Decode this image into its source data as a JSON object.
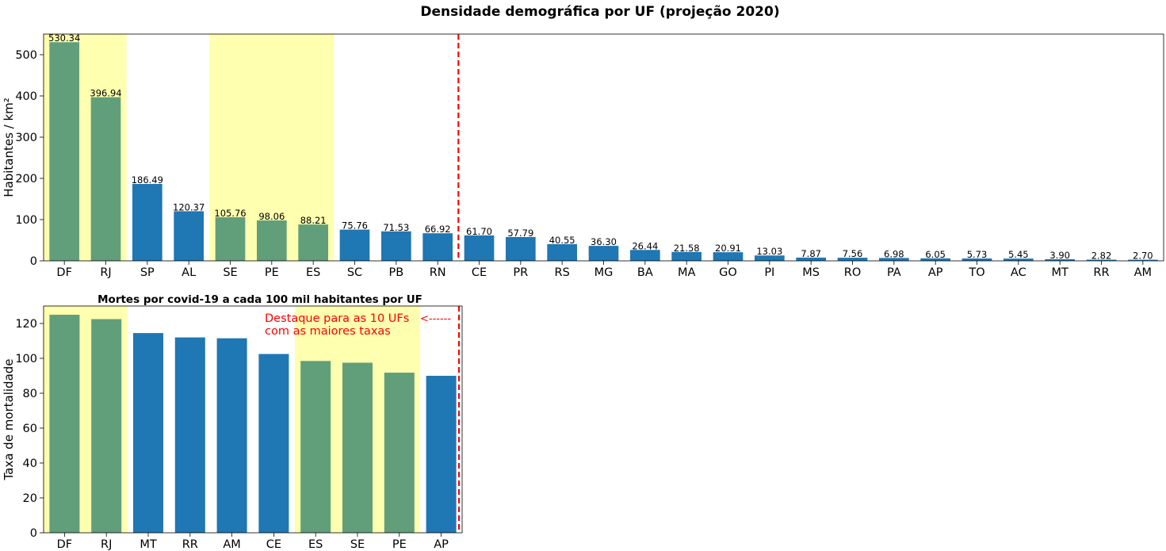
{
  "colors": {
    "bar": "#1f77b4",
    "bar_highlight": "#619f7b",
    "band": "#ffffb0",
    "divider": "#ff0000",
    "annotation": "#ff0000",
    "text": "#000000"
  },
  "chart_data": [
    {
      "type": "bar",
      "title": "Densidade demográfica por UF (projeção 2020)",
      "xlabel": "",
      "ylabel": "Habitantes / km²",
      "ylim": [
        0,
        550
      ],
      "yticks": [
        0,
        100,
        200,
        300,
        400,
        500
      ],
      "grid": false,
      "categories": [
        "DF",
        "RJ",
        "SP",
        "AL",
        "SE",
        "PE",
        "ES",
        "SC",
        "PB",
        "RN",
        "CE",
        "PR",
        "RS",
        "MG",
        "BA",
        "MA",
        "GO",
        "PI",
        "MS",
        "RO",
        "PA",
        "AP",
        "TO",
        "AC",
        "MT",
        "RR",
        "AM"
      ],
      "values": [
        530.34,
        396.94,
        186.49,
        120.37,
        105.76,
        98.06,
        88.21,
        75.76,
        71.53,
        66.92,
        61.7,
        57.79,
        40.55,
        36.3,
        26.44,
        21.58,
        20.91,
        13.03,
        7.87,
        7.56,
        6.98,
        6.05,
        5.73,
        5.45,
        3.9,
        2.82,
        2.7
      ],
      "value_labels": [
        "530.34",
        "396.94",
        "186.49",
        "120.37",
        "105.76",
        "98.06",
        "88.21",
        "75.76",
        "71.53",
        "66.92",
        "61.70",
        "57.79",
        "40.55",
        "36.30",
        "26.44",
        "21.58",
        "20.91",
        "13.03",
        "7.87",
        "7.56",
        "6.98",
        "6.05",
        "5.73",
        "5.45",
        "3.90",
        "2.82",
        "2.70"
      ],
      "highlighted": [
        "DF",
        "RJ",
        "SE",
        "PE",
        "ES"
      ],
      "highlight_bands": [
        [
          "DF",
          "RJ"
        ],
        [
          "SE",
          "ES"
        ]
      ],
      "divider_after": "RN"
    },
    {
      "type": "bar",
      "title": "Mortes por covid-19 a cada 100 mil habitantes por UF",
      "xlabel": "",
      "ylabel": "Taxa de mortalidade",
      "ylim": [
        0,
        130
      ],
      "yticks": [
        0,
        20,
        40,
        60,
        80,
        100,
        120
      ],
      "grid": false,
      "categories": [
        "DF",
        "RJ",
        "MT",
        "RR",
        "AM",
        "CE",
        "ES",
        "SE",
        "PE",
        "AP"
      ],
      "values": [
        125.0,
        122.5,
        114.5,
        112.0,
        111.5,
        102.5,
        98.5,
        97.5,
        91.8,
        90.0
      ],
      "highlighted": [
        "DF",
        "RJ",
        "ES",
        "SE",
        "PE"
      ],
      "highlight_bands": [
        [
          "DF",
          "RJ"
        ],
        [
          "ES",
          "PE"
        ]
      ],
      "divider_after": "AP",
      "annotation_lines": [
        "Destaque para as 10 UFs",
        "com as maiores taxas"
      ],
      "annotation_arrow": "<------"
    }
  ]
}
